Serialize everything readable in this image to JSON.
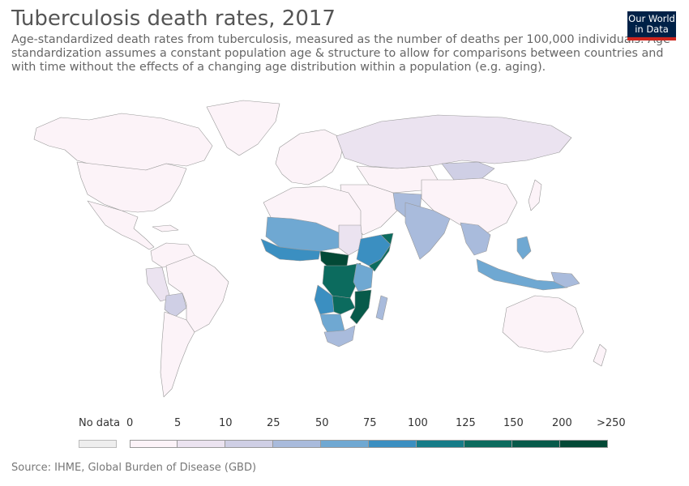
{
  "header": {
    "title": "Tuberculosis death rates, 2017",
    "subtitle": "Age-standardized death rates from tuberculosis, measured as the number of deaths per 100,000 individuals. Age-standardization assumes a constant population age & structure to allow for comparisons between countries and with time without the effects of a changing age distribution within a population (e.g. aging).",
    "logo_line1": "Our World",
    "logo_line2": "in Data"
  },
  "legend": {
    "no_data_label": "No data",
    "bins": [
      "0",
      "5",
      "10",
      "25",
      "50",
      "75",
      "100",
      "125",
      "150",
      "200",
      ">250"
    ],
    "colors": [
      "#fcf3f8",
      "#ebe3f0",
      "#cfcfe5",
      "#a9bbdc",
      "#6fa8d2",
      "#3b8fc1",
      "#167c88",
      "#0c6b5e",
      "#075a4a",
      "#034936"
    ],
    "no_data_color": "#eeeeee"
  },
  "footer": {
    "source": "Source: IHME, Global Burden of Disease (GBD)"
  }
}
